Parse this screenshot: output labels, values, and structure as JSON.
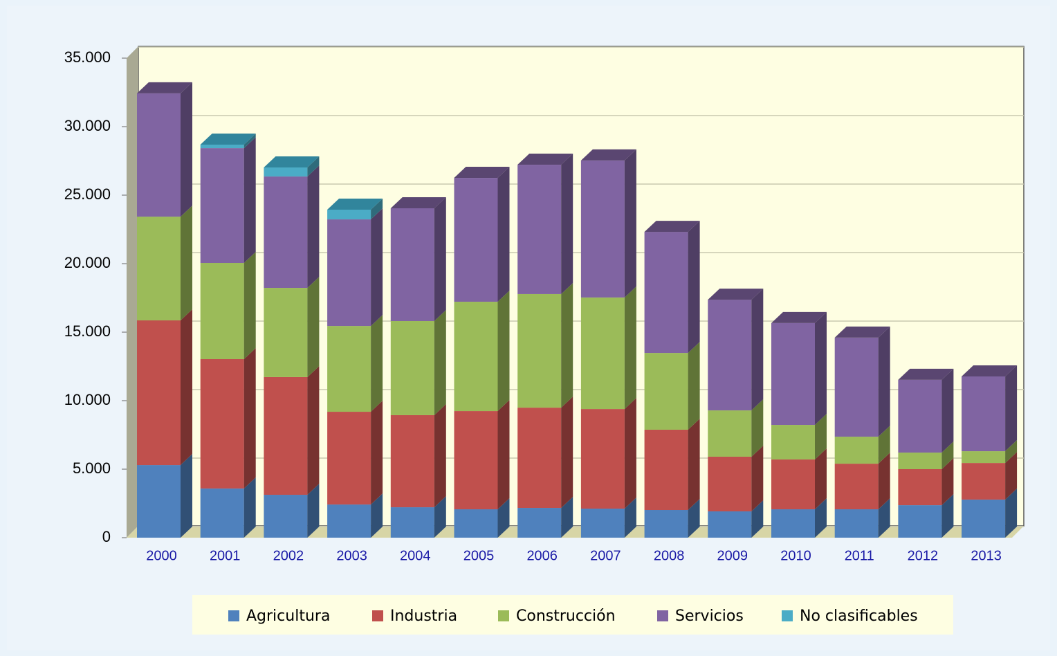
{
  "chart_data": {
    "type": "bar",
    "categories": [
      "2000",
      "2001",
      "2002",
      "2003",
      "2004",
      "2005",
      "2006",
      "2007",
      "2008",
      "2009",
      "2010",
      "2011",
      "2012",
      "2013"
    ],
    "series": [
      {
        "name": "Agricultura",
        "color": "#4f81bd",
        "values": [
          5300,
          3590,
          3130,
          2420,
          2220,
          2070,
          2170,
          2120,
          2020,
          1920,
          2070,
          2070,
          2370,
          2780
        ]
      },
      {
        "name": "Industria",
        "color": "#c0504d",
        "values": [
          10560,
          9440,
          8590,
          6770,
          6720,
          7170,
          7320,
          7270,
          5860,
          3990,
          3640,
          3330,
          2630,
          2670
        ]
      },
      {
        "name": "Construcción",
        "color": "#9bbb59",
        "values": [
          7570,
          7020,
          6510,
          6260,
          6870,
          7980,
          8290,
          8140,
          5600,
          3380,
          2520,
          1970,
          1210,
          860
        ]
      },
      {
        "name": "Servicios",
        "color": "#8064a2",
        "values": [
          9000,
          8380,
          8130,
          7780,
          8230,
          9040,
          9440,
          10000,
          8840,
          8080,
          7430,
          7230,
          5310,
          5460
        ]
      },
      {
        "name": "No clasificables",
        "color": "#4bacc6",
        "values": [
          0,
          260,
          660,
          710,
          0,
          0,
          0,
          0,
          0,
          0,
          0,
          0,
          0,
          0
        ]
      }
    ],
    "stacked": true,
    "ylim": [
      0,
      35000
    ],
    "yticks": [
      0,
      {
        "value": 5000,
        "label": "5.000"
      },
      {
        "value": 10000,
        "label": "10.000"
      },
      {
        "value": 15000,
        "label": "15.000"
      },
      {
        "value": 20000,
        "label": "20.000"
      },
      {
        "value": 25000,
        "label": "25.000"
      },
      {
        "value": 30000,
        "label": "30.000"
      },
      {
        "value": 35000,
        "label": "35.000"
      }
    ],
    "grid": true,
    "legend": "bottom"
  }
}
